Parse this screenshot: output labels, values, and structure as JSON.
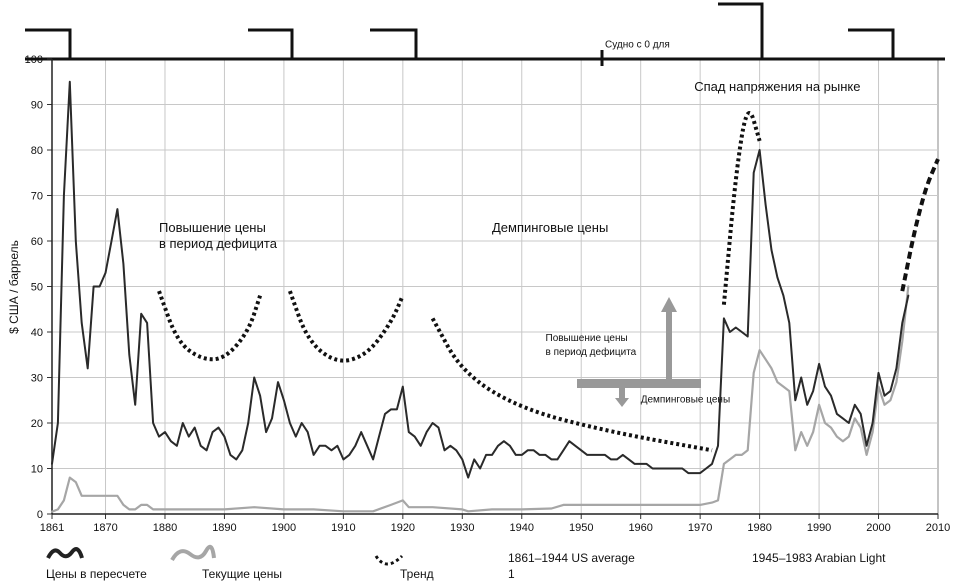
{
  "chart_data": {
    "type": "line",
    "ylabel": "$ США / баррель",
    "xlim": [
      1861,
      2010
    ],
    "ylim": [
      0,
      100
    ],
    "x_ticks": [
      1861,
      1870,
      1880,
      1890,
      1900,
      1910,
      1920,
      1930,
      1940,
      1950,
      1960,
      1970,
      1980,
      1990,
      2000,
      2010
    ],
    "y_ticks": [
      0,
      10,
      20,
      30,
      40,
      50,
      60,
      70,
      80,
      90,
      100
    ],
    "grid": true,
    "series": [
      {
        "name": "Цены в пересчете",
        "color": "#2a2a2a",
        "points": [
          [
            1861,
            11
          ],
          [
            1862,
            20
          ],
          [
            1863,
            70
          ],
          [
            1864,
            95
          ],
          [
            1865,
            60
          ],
          [
            1866,
            42
          ],
          [
            1867,
            32
          ],
          [
            1868,
            50
          ],
          [
            1869,
            50
          ],
          [
            1870,
            53
          ],
          [
            1871,
            60
          ],
          [
            1872,
            67
          ],
          [
            1873,
            55
          ],
          [
            1874,
            35
          ],
          [
            1875,
            24
          ],
          [
            1876,
            44
          ],
          [
            1877,
            42
          ],
          [
            1878,
            20
          ],
          [
            1879,
            17
          ],
          [
            1880,
            18
          ],
          [
            1881,
            16
          ],
          [
            1882,
            15
          ],
          [
            1883,
            20
          ],
          [
            1884,
            17
          ],
          [
            1885,
            19
          ],
          [
            1886,
            15
          ],
          [
            1887,
            14
          ],
          [
            1888,
            18
          ],
          [
            1889,
            19
          ],
          [
            1890,
            17
          ],
          [
            1891,
            13
          ],
          [
            1892,
            12
          ],
          [
            1893,
            14
          ],
          [
            1894,
            20
          ],
          [
            1895,
            30
          ],
          [
            1896,
            26
          ],
          [
            1897,
            18
          ],
          [
            1898,
            21
          ],
          [
            1899,
            29
          ],
          [
            1900,
            25
          ],
          [
            1901,
            20
          ],
          [
            1902,
            17
          ],
          [
            1903,
            20
          ],
          [
            1904,
            18
          ],
          [
            1905,
            13
          ],
          [
            1906,
            15
          ],
          [
            1907,
            15
          ],
          [
            1908,
            14
          ],
          [
            1909,
            15
          ],
          [
            1910,
            12
          ],
          [
            1911,
            13
          ],
          [
            1912,
            15
          ],
          [
            1913,
            18
          ],
          [
            1914,
            15
          ],
          [
            1915,
            12
          ],
          [
            1916,
            17
          ],
          [
            1917,
            22
          ],
          [
            1918,
            23
          ],
          [
            1919,
            23
          ],
          [
            1920,
            28
          ],
          [
            1921,
            18
          ],
          [
            1922,
            17
          ],
          [
            1923,
            15
          ],
          [
            1924,
            18
          ],
          [
            1925,
            20
          ],
          [
            1926,
            19
          ],
          [
            1927,
            14
          ],
          [
            1928,
            15
          ],
          [
            1929,
            14
          ],
          [
            1930,
            12
          ],
          [
            1931,
            8
          ],
          [
            1932,
            12
          ],
          [
            1933,
            10
          ],
          [
            1934,
            13
          ],
          [
            1935,
            13
          ],
          [
            1936,
            15
          ],
          [
            1937,
            16
          ],
          [
            1938,
            15
          ],
          [
            1939,
            13
          ],
          [
            1940,
            13
          ],
          [
            1941,
            14
          ],
          [
            1942,
            14
          ],
          [
            1943,
            13
          ],
          [
            1944,
            13
          ],
          [
            1945,
            12
          ],
          [
            1946,
            12
          ],
          [
            1947,
            14
          ],
          [
            1948,
            16
          ],
          [
            1949,
            15
          ],
          [
            1950,
            14
          ],
          [
            1951,
            13
          ],
          [
            1952,
            13
          ],
          [
            1953,
            13
          ],
          [
            1954,
            13
          ],
          [
            1955,
            12
          ],
          [
            1956,
            12
          ],
          [
            1957,
            13
          ],
          [
            1958,
            12
          ],
          [
            1959,
            11
          ],
          [
            1960,
            11
          ],
          [
            1961,
            11
          ],
          [
            1962,
            10
          ],
          [
            1963,
            10
          ],
          [
            1964,
            10
          ],
          [
            1965,
            10
          ],
          [
            1966,
            10
          ],
          [
            1967,
            10
          ],
          [
            1968,
            9
          ],
          [
            1969,
            9
          ],
          [
            1970,
            9
          ],
          [
            1971,
            10
          ],
          [
            1972,
            11
          ],
          [
            1973,
            15
          ],
          [
            1974,
            43
          ],
          [
            1975,
            40
          ],
          [
            1976,
            41
          ],
          [
            1977,
            40
          ],
          [
            1978,
            39
          ],
          [
            1979,
            75
          ],
          [
            1980,
            80
          ],
          [
            1981,
            68
          ],
          [
            1982,
            58
          ],
          [
            1983,
            52
          ],
          [
            1984,
            48
          ],
          [
            1985,
            42
          ],
          [
            1986,
            25
          ],
          [
            1987,
            30
          ],
          [
            1988,
            24
          ],
          [
            1989,
            27
          ],
          [
            1990,
            33
          ],
          [
            1991,
            28
          ],
          [
            1992,
            26
          ],
          [
            1993,
            22
          ],
          [
            1994,
            21
          ],
          [
            1995,
            20
          ],
          [
            1996,
            24
          ],
          [
            1997,
            22
          ],
          [
            1998,
            15
          ],
          [
            1999,
            20
          ],
          [
            2000,
            31
          ],
          [
            2001,
            26
          ],
          [
            2002,
            27
          ],
          [
            2003,
            32
          ],
          [
            2004,
            42
          ],
          [
            2005,
            48
          ]
        ]
      },
      {
        "name": "Текущие цены",
        "color": "#a6a6a6",
        "points": [
          [
            1861,
            0.5
          ],
          [
            1862,
            1
          ],
          [
            1863,
            3
          ],
          [
            1864,
            8
          ],
          [
            1865,
            7
          ],
          [
            1866,
            4
          ],
          [
            1867,
            4
          ],
          [
            1868,
            4
          ],
          [
            1869,
            4
          ],
          [
            1870,
            4
          ],
          [
            1871,
            4
          ],
          [
            1872,
            4
          ],
          [
            1873,
            2
          ],
          [
            1874,
            1
          ],
          [
            1875,
            1
          ],
          [
            1876,
            2
          ],
          [
            1877,
            2
          ],
          [
            1878,
            1
          ],
          [
            1879,
            1
          ],
          [
            1880,
            1
          ],
          [
            1885,
            1
          ],
          [
            1890,
            1
          ],
          [
            1895,
            1.5
          ],
          [
            1900,
            1
          ],
          [
            1905,
            1
          ],
          [
            1910,
            0.6
          ],
          [
            1915,
            0.6
          ],
          [
            1918,
            2
          ],
          [
            1920,
            3
          ],
          [
            1921,
            1.5
          ],
          [
            1925,
            1.5
          ],
          [
            1930,
            1
          ],
          [
            1931,
            0.6
          ],
          [
            1935,
            1
          ],
          [
            1940,
            1
          ],
          [
            1945,
            1.2
          ],
          [
            1947,
            2
          ],
          [
            1950,
            2
          ],
          [
            1955,
            2
          ],
          [
            1960,
            2
          ],
          [
            1965,
            2
          ],
          [
            1970,
            2
          ],
          [
            1972,
            2.5
          ],
          [
            1973,
            3
          ],
          [
            1974,
            11
          ],
          [
            1975,
            12
          ],
          [
            1976,
            13
          ],
          [
            1977,
            13
          ],
          [
            1978,
            14
          ],
          [
            1979,
            31
          ],
          [
            1980,
            36
          ],
          [
            1981,
            34
          ],
          [
            1982,
            32
          ],
          [
            1983,
            29
          ],
          [
            1984,
            28
          ],
          [
            1985,
            27
          ],
          [
            1986,
            14
          ],
          [
            1987,
            18
          ],
          [
            1988,
            15
          ],
          [
            1989,
            18
          ],
          [
            1990,
            24
          ],
          [
            1991,
            20
          ],
          [
            1992,
            19
          ],
          [
            1993,
            17
          ],
          [
            1994,
            16
          ],
          [
            1995,
            17
          ],
          [
            1996,
            21
          ],
          [
            1997,
            19
          ],
          [
            1998,
            13
          ],
          [
            1999,
            18
          ],
          [
            2000,
            28
          ],
          [
            2001,
            24
          ],
          [
            2002,
            25
          ],
          [
            2003,
            29
          ],
          [
            2004,
            38
          ],
          [
            2005,
            50
          ]
        ]
      }
    ],
    "trends": [
      [
        [
          1879,
          49
        ],
        [
          1882,
          38
        ],
        [
          1886,
          34
        ],
        [
          1890,
          34
        ],
        [
          1894,
          40
        ],
        [
          1896,
          48
        ]
      ],
      [
        [
          1901,
          49
        ],
        [
          1904,
          38
        ],
        [
          1909,
          33
        ],
        [
          1914,
          35
        ],
        [
          1918,
          42
        ],
        [
          1920,
          48
        ]
      ],
      [
        [
          1925,
          43
        ],
        [
          1930,
          31
        ],
        [
          1940,
          23
        ],
        [
          1955,
          18
        ],
        [
          1972,
          14
        ]
      ],
      [
        [
          1974,
          46
        ],
        [
          1976,
          75
        ],
        [
          1978,
          91
        ],
        [
          1980,
          82
        ]
      ],
      [
        [
          2004,
          49
        ],
        [
          2006,
          62
        ],
        [
          2008,
          72
        ],
        [
          2010,
          78
        ]
      ]
    ],
    "annotations": [
      {
        "text": "Повышение цены",
        "x": 1879,
        "y": 62
      },
      {
        "text": "в период дефицита",
        "x": 1879,
        "y": 58.5
      },
      {
        "text": "Демпинговые цены",
        "x": 1935,
        "y": 62
      },
      {
        "text": "Спад напряжения на рынке",
        "x": 1969,
        "y": 93
      },
      {
        "text": "Повышение цены",
        "x": 1944,
        "y": 38,
        "small": true
      },
      {
        "text": "в период дефицита",
        "x": 1944,
        "y": 35,
        "small": true
      },
      {
        "text": "Демпинговые цены",
        "x": 1960,
        "y": 24.5,
        "small": true
      },
      {
        "text": "Судно с 0 для",
        "x": 1954,
        "y": 102.5,
        "small": true
      }
    ],
    "legend": [
      {
        "name": "Цены в пересчете",
        "style": "dark"
      },
      {
        "name": "Текущие цены",
        "style": "gray"
      },
      {
        "name": "Тренд",
        "style": "dotted"
      },
      {
        "name": "1861–1944 US average",
        "style": "text"
      },
      {
        "name": "1",
        "style": "text"
      },
      {
        "name": "1945–1983 Arabian Light",
        "style": "text"
      }
    ]
  }
}
